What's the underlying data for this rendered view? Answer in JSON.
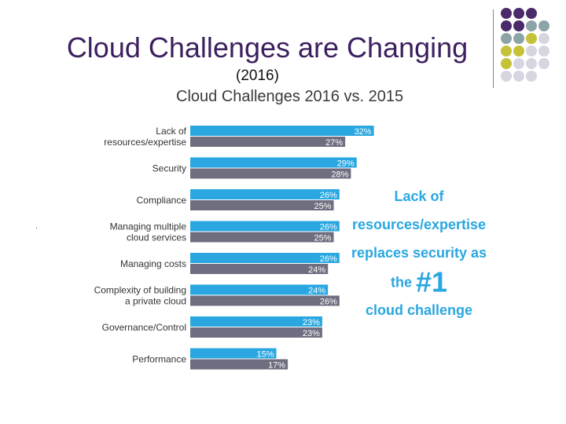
{
  "slide": {
    "title": "Cloud Challenges are Changing",
    "subtitle": "(2016)"
  },
  "callout": {
    "line1": "Lack of",
    "line2": "resources/expertise",
    "line3": "replaces security as",
    "line4a": "the",
    "line4b": "#1",
    "line5": "cloud challenge"
  },
  "colors": {
    "bar_2016": "#2aa7e0",
    "bar_2015": "#6e6e80",
    "title": "#3b1f5e",
    "dots_purple": "#4b2a6b",
    "dots_teal": "#8ca3a8",
    "dots_olive": "#c5c239",
    "dots_grey": "#d7d5e0"
  },
  "chart_data": {
    "type": "bar",
    "orientation": "horizontal",
    "title": "Cloud Challenges 2016 vs. 2015",
    "categories": [
      [
        "Lack of",
        "resources/expertise"
      ],
      [
        "Security"
      ],
      [
        "Compliance"
      ],
      [
        "Managing multiple",
        "cloud services"
      ],
      [
        "Managing costs"
      ],
      [
        "Complexity of building",
        "a private cloud"
      ],
      [
        "Governance/Control"
      ],
      [
        "Performance"
      ]
    ],
    "series": [
      {
        "name": "2016",
        "values": [
          32,
          29,
          26,
          26,
          26,
          24,
          23,
          15
        ]
      },
      {
        "name": "2015",
        "values": [
          27,
          28,
          25,
          25,
          24,
          26,
          23,
          17
        ]
      }
    ],
    "value_suffix": "%",
    "xlim": [
      0,
      32
    ]
  }
}
